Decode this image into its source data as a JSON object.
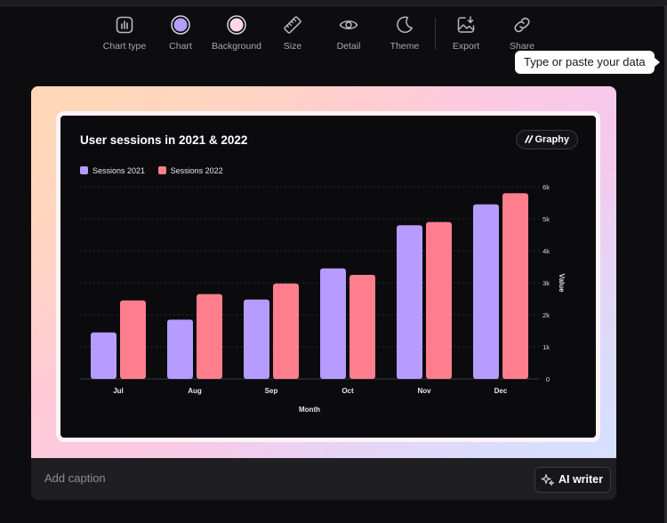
{
  "toolbar": {
    "items": [
      {
        "label": "Chart type",
        "icon": "chart-type-icon"
      },
      {
        "label": "Chart",
        "icon": "chart-color-swatch",
        "color": "#b69cff"
      },
      {
        "label": "Background",
        "icon": "background-color-swatch",
        "color": "#ffd6e8"
      },
      {
        "label": "Size",
        "icon": "ruler-icon"
      },
      {
        "label": "Detail",
        "icon": "eye-icon"
      },
      {
        "label": "Theme",
        "icon": "moon-icon"
      },
      {
        "label": "Export",
        "icon": "export-image-icon"
      },
      {
        "label": "Share",
        "icon": "link-icon"
      }
    ]
  },
  "tooltip": {
    "text": "Type or paste your data"
  },
  "chart_card": {
    "logo": "Graphy",
    "caption_placeholder": "Add caption",
    "ai_writer_label": "AI writer"
  },
  "chart_data": {
    "type": "bar",
    "title": "User sessions in 2021 & 2022",
    "xlabel": "Month",
    "ylabel": "Value",
    "categories": [
      "Jul",
      "Aug",
      "Sep",
      "Oct",
      "Nov",
      "Dec"
    ],
    "series": [
      {
        "name": "Sessions 2021",
        "color": "#b69cff",
        "values": [
          1450,
          1850,
          2480,
          3450,
          4800,
          5450
        ]
      },
      {
        "name": "Sessions 2022",
        "color": "#ff7e8e",
        "values": [
          2450,
          2650,
          2980,
          3250,
          4900,
          5800
        ]
      }
    ],
    "ylim": [
      0,
      6000
    ],
    "yticks": [
      0,
      1000,
      2000,
      3000,
      4000,
      5000,
      6000
    ],
    "ytick_labels": [
      "0",
      "1k",
      "2k",
      "3k",
      "4k",
      "5k",
      "6k"
    ],
    "y_axis_side": "right",
    "grid": true,
    "legend_position": "top-left",
    "background": "#0b0b0e"
  }
}
